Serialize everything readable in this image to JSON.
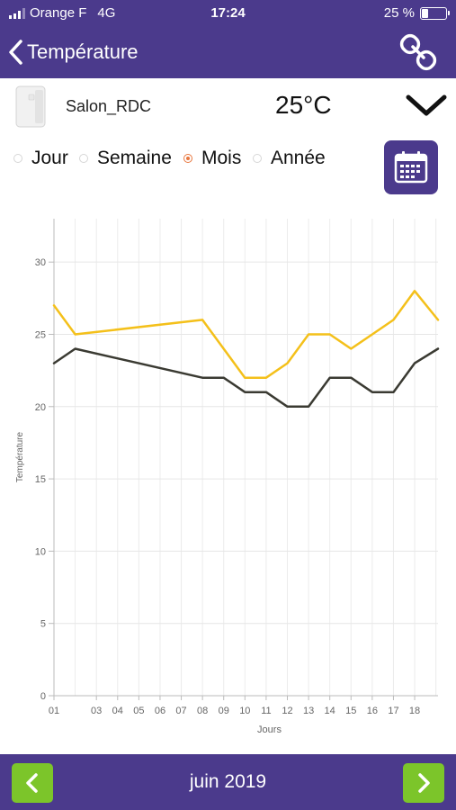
{
  "status": {
    "carrier": "Orange F",
    "network": "4G",
    "time": "17:24",
    "battery_label": "25 %",
    "battery_level": 0.25
  },
  "nav": {
    "title": "Température",
    "back_icon": "chevron-left-icon",
    "link_icon": "link-icon"
  },
  "device": {
    "name": "Salon_RDC",
    "temperature": "25°C",
    "expand_icon": "chevron-down-icon"
  },
  "period": {
    "options": [
      "Jour",
      "Semaine",
      "Mois",
      "Année"
    ],
    "selected": "Mois",
    "calendar_icon": "calendar-icon"
  },
  "footer": {
    "month": "juin 2019",
    "prev_icon": "chevron-left-icon",
    "next_icon": "chevron-right-icon"
  },
  "colors": {
    "brand": "#4b3a8c",
    "accent_green": "#7cc52a",
    "radio_selected": "#e8773f",
    "series_max": "#f4c01a",
    "series_min": "#3a3a32"
  },
  "chart_data": {
    "type": "line",
    "xlabel": "Jours",
    "ylabel": "Température",
    "ylim": [
      0,
      33
    ],
    "yticks": [
      0,
      5,
      10,
      15,
      20,
      25,
      30
    ],
    "xlim": [
      1,
      19.1
    ],
    "xticks": [
      "01",
      "03",
      "04",
      "05",
      "06",
      "07",
      "08",
      "09",
      "10",
      "11",
      "12",
      "13",
      "14",
      "15",
      "16",
      "17",
      "18"
    ],
    "xtick_values": [
      1,
      3,
      4,
      5,
      6,
      7,
      8,
      9,
      10,
      11,
      12,
      13,
      14,
      15,
      16,
      17,
      18
    ],
    "grid": true,
    "series": [
      {
        "x": [
          1,
          2,
          8,
          10,
          11,
          12,
          13,
          14,
          15,
          16,
          17,
          18,
          19.1
        ],
        "values": [
          27,
          25,
          26,
          22,
          22,
          23,
          25,
          25,
          24,
          25,
          26,
          28,
          26
        ]
      },
      {
        "x": [
          1,
          2,
          8,
          9,
          10,
          11,
          12,
          13,
          14,
          15,
          16,
          17,
          18,
          19.1
        ],
        "values": [
          23,
          24,
          22,
          22,
          21,
          21,
          20,
          20,
          22,
          22,
          21,
          21,
          23,
          24
        ]
      }
    ]
  }
}
